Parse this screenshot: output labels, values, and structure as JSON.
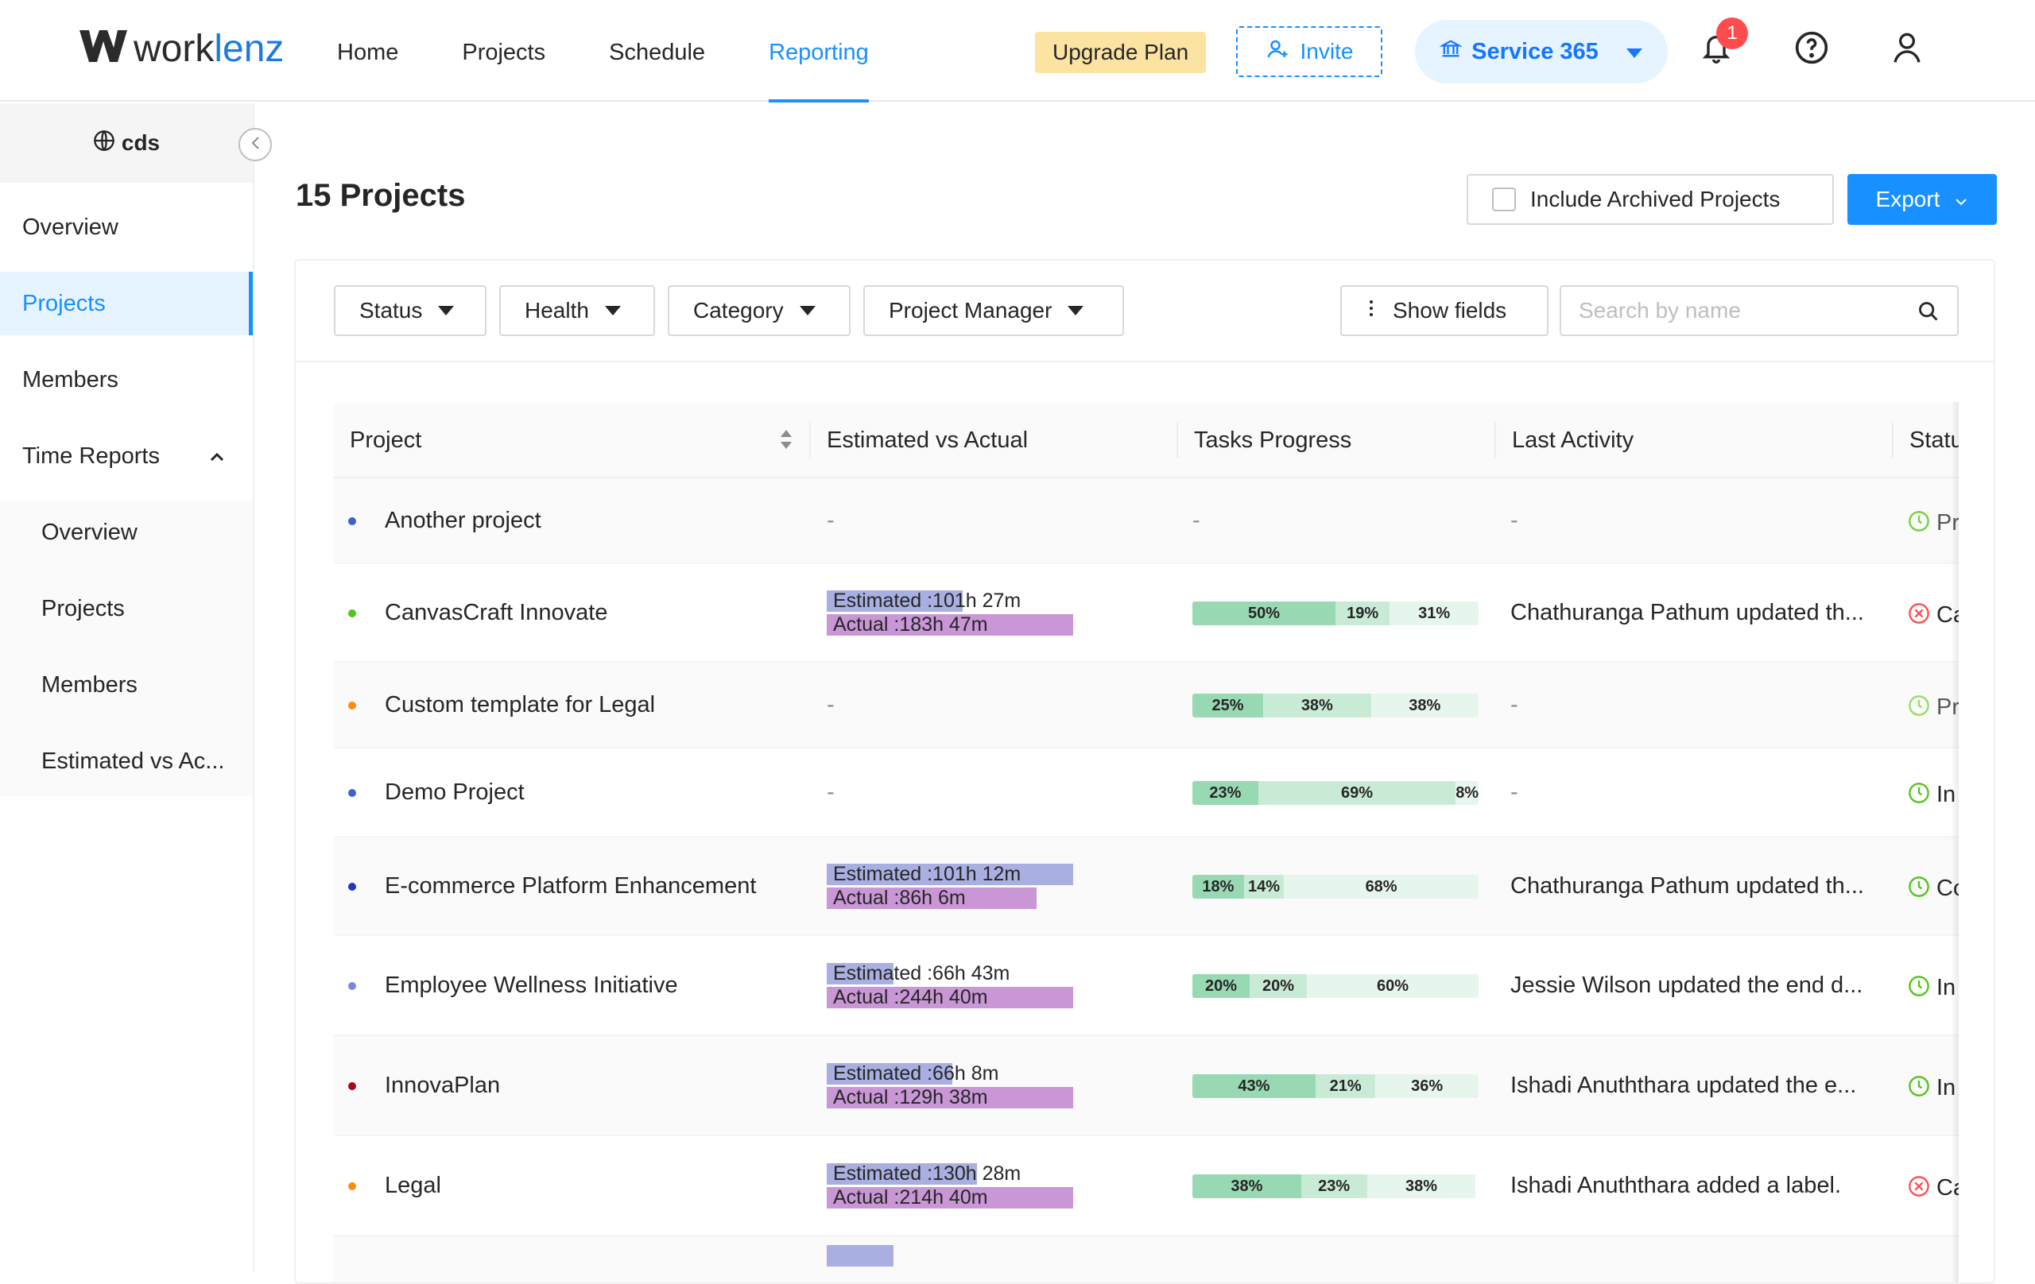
{
  "topbar": {
    "logo_text_a": "work",
    "logo_text_b": "lenz",
    "nav": [
      "Home",
      "Projects",
      "Schedule",
      "Reporting"
    ],
    "active_nav": "Reporting",
    "upgrade_label": "Upgrade Plan",
    "invite_label": "Invite",
    "org_name": "Service 365",
    "notification_count": "1"
  },
  "sidebar": {
    "workspace": "cds",
    "items": [
      "Overview",
      "Projects",
      "Members",
      "Time Reports"
    ],
    "active_item": "Projects",
    "submenu": [
      "Overview",
      "Projects",
      "Members",
      "Estimated vs Ac..."
    ]
  },
  "main": {
    "title": "15 Projects",
    "include_archived_label": "Include Archived Projects",
    "export_label": "Export"
  },
  "filters": {
    "status": "Status",
    "health": "Health",
    "category": "Category",
    "manager": "Project Manager",
    "show_fields": "Show fields",
    "search_placeholder": "Search by name"
  },
  "table": {
    "headers": [
      "Project",
      "Estimated vs Actual",
      "Tasks Progress",
      "Last Activity",
      "Statu"
    ],
    "rows": [
      {
        "name": "Another project",
        "dot": "#3a64c8",
        "ev": null,
        "progress": null,
        "activity": "-",
        "status_icon": "clock",
        "status_color": "#73d13d",
        "status_text": "Pr",
        "status_dim": true
      },
      {
        "name": "CanvasCraft Innovate",
        "dot": "#52c41a",
        "ev": {
          "est_label": "Estimated :101h 27m",
          "act_label": "Actual :183h 47m",
          "est_ratio": 0.55,
          "act_ratio": 1.0
        },
        "progress": [
          50,
          19,
          31
        ],
        "activity": "Chathuranga Pathum updated th...",
        "status_icon": "cancel",
        "status_color": "#ff4d4f",
        "status_text": "Ca",
        "status_dim": false
      },
      {
        "name": "Custom template for Legal",
        "dot": "#fa8c16",
        "ev": null,
        "progress": [
          25,
          38,
          38
        ],
        "activity": "-",
        "status_icon": "clock",
        "status_color": "#95de64",
        "status_text": "Pr",
        "status_dim": true
      },
      {
        "name": "Demo Project",
        "dot": "#3a64c8",
        "ev": null,
        "progress": [
          23,
          69,
          8
        ],
        "activity": "-",
        "status_icon": "clock",
        "status_color": "#52c41a",
        "status_text": "In",
        "status_dim": false
      },
      {
        "name": "E-commerce Platform Enhancement",
        "dot": "#1d39c4",
        "ev": {
          "est_label": "Estimated :101h 12m",
          "act_label": "Actual :86h 6m",
          "est_ratio": 1.0,
          "act_ratio": 0.85
        },
        "progress": [
          18,
          14,
          68
        ],
        "activity": "Chathuranga Pathum updated th...",
        "status_icon": "clock",
        "status_color": "#52c41a",
        "status_text": "Co",
        "status_dim": false
      },
      {
        "name": "Employee Wellness Initiative",
        "dot": "#7b8ad6",
        "ev": {
          "est_label": "Estimated :66h 43m",
          "act_label": "Actual :244h 40m",
          "est_ratio": 0.27,
          "act_ratio": 1.0
        },
        "progress": [
          20,
          20,
          60
        ],
        "activity": "Jessie Wilson updated the end d...",
        "status_icon": "clock",
        "status_color": "#52c41a",
        "status_text": "In",
        "status_dim": false
      },
      {
        "name": "InnovaPlan",
        "dot": "#a8071a",
        "ev": {
          "est_label": "Estimated :66h 8m",
          "act_label": "Actual :129h 38m",
          "est_ratio": 0.51,
          "act_ratio": 1.0
        },
        "progress": [
          43,
          21,
          36
        ],
        "activity": "Ishadi Anuththara updated the e...",
        "status_icon": "clock",
        "status_color": "#52c41a",
        "status_text": "In",
        "status_dim": false
      },
      {
        "name": "Legal",
        "dot": "#fa8c16",
        "ev": {
          "est_label": "Estimated :130h 28m",
          "act_label": "Actual :214h 40m",
          "est_ratio": 0.61,
          "act_ratio": 1.0
        },
        "progress": [
          38,
          23,
          38
        ],
        "activity": "Ishadi Anuththara added a label.",
        "status_icon": "cancel",
        "status_color": "#ff4d4f",
        "status_text": "Ca",
        "status_dim": false
      },
      {
        "name": "",
        "dot": "#ffffff",
        "ev": {
          "est_label": "",
          "act_label": "",
          "est_ratio": 0.27,
          "act_ratio": 0
        },
        "progress": null,
        "activity": "",
        "status_icon": "",
        "status_color": "#ffffff",
        "status_text": "",
        "status_dim": false
      }
    ]
  },
  "colors": {
    "primary": "#1890ff",
    "estimated": "#a9afe0",
    "actual": "#c996d6",
    "progress_done": "#98d9b3",
    "progress_doing": "#c9ebd6",
    "progress_todo": "#e7f6ed"
  }
}
